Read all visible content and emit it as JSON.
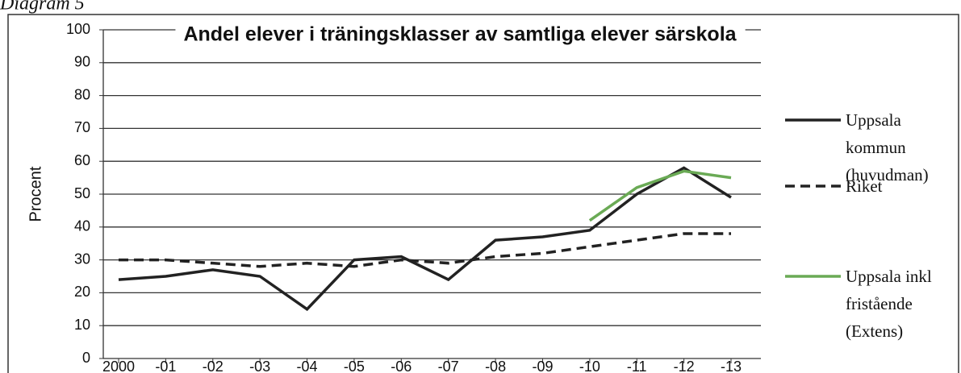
{
  "chart_data": {
    "type": "line",
    "subtitle": "Diagram 5",
    "title": "Andel elever i träningsklasser av samtliga elever särskola",
    "y_label": "Procent",
    "categories": [
      "2000",
      "-01",
      "-02",
      "-03",
      "-04",
      "-05",
      "-06",
      "-07",
      "-08",
      "-09",
      "-10",
      "-11",
      "-12",
      "-13"
    ],
    "series": [
      {
        "name": "Uppsala kommun (huvudman)",
        "color": "#222222",
        "dash": false,
        "values": [
          24,
          25,
          27,
          25,
          15,
          30,
          31,
          24,
          36,
          37,
          39,
          50,
          58,
          49
        ]
      },
      {
        "name": "Riket",
        "color": "#222222",
        "dash": true,
        "values": [
          30,
          30,
          29,
          28,
          29,
          28,
          30,
          29,
          31,
          32,
          34,
          36,
          38,
          38
        ]
      },
      {
        "name": "Uppsala inkl fristående (Extens)",
        "color": "#6aaa55",
        "dash": false,
        "values": [
          null,
          null,
          null,
          null,
          null,
          null,
          null,
          null,
          null,
          null,
          42,
          52,
          57,
          55
        ]
      }
    ],
    "ylim": [
      0,
      100
    ],
    "yticks": [
      0,
      10,
      20,
      30,
      40,
      50,
      60,
      70,
      80,
      90,
      100
    ],
    "grid": true,
    "legend": "right"
  }
}
